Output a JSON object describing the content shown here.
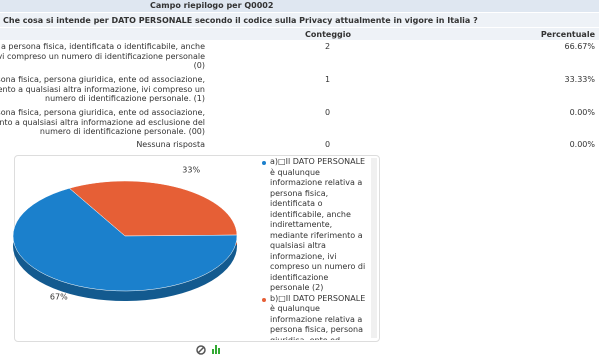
{
  "header": {
    "title": "Campo riepilogo per Q0002",
    "question": "Che cosa si intende per DATO PERSONALE secondo il codice sulla Privacy attualmente in vigore in Italia ?"
  },
  "table": {
    "columns": [
      "Conteggio",
      "Percentuale"
    ],
    "rows": [
      {
        "label": [
          "va a persona fisica, identificata o identificabile, anche",
          "ivi compreso un numero di identificazione personale",
          "(0)"
        ],
        "count": "2",
        "percent": "66.67%"
      },
      {
        "label": [
          "ersona fisica, persona giuridica, ente od associazione,",
          "riferimento a qualsiasi altra informazione, ivi compreso un",
          "numero di identificazione personale. (1)"
        ],
        "count": "1",
        "percent": "33.33%"
      },
      {
        "label": [
          "ersona fisica, persona giuridica, ente od associazione,",
          "imento a qualsiasi altra informazione ad esclusione del",
          "numero di identificazione personale. (00)"
        ],
        "count": "0",
        "percent": "0.00%"
      },
      {
        "label": [
          "Nessuna risposta"
        ],
        "count": "0",
        "percent": "0.00%"
      }
    ]
  },
  "chart_data": {
    "type": "pie",
    "categories": [
      "a)□Il DATO PERSONALE è qualunque informazione relativa a persona fisica, identificata o identificabile, anche indirettamente, mediante riferimento a qualsiasi altra informazione, ivi compreso un numero di identificazione personale (2)",
      "b)□Il DATO PERSONALE è qualunque informazione relativa a persona fisica, persona giuridica, ente od associazione, identificati o identificabili"
    ],
    "values": [
      67,
      33
    ],
    "value_labels": [
      "67%",
      "33%"
    ],
    "colors": [
      "#1b80cc",
      "#e65f36"
    ]
  }
}
